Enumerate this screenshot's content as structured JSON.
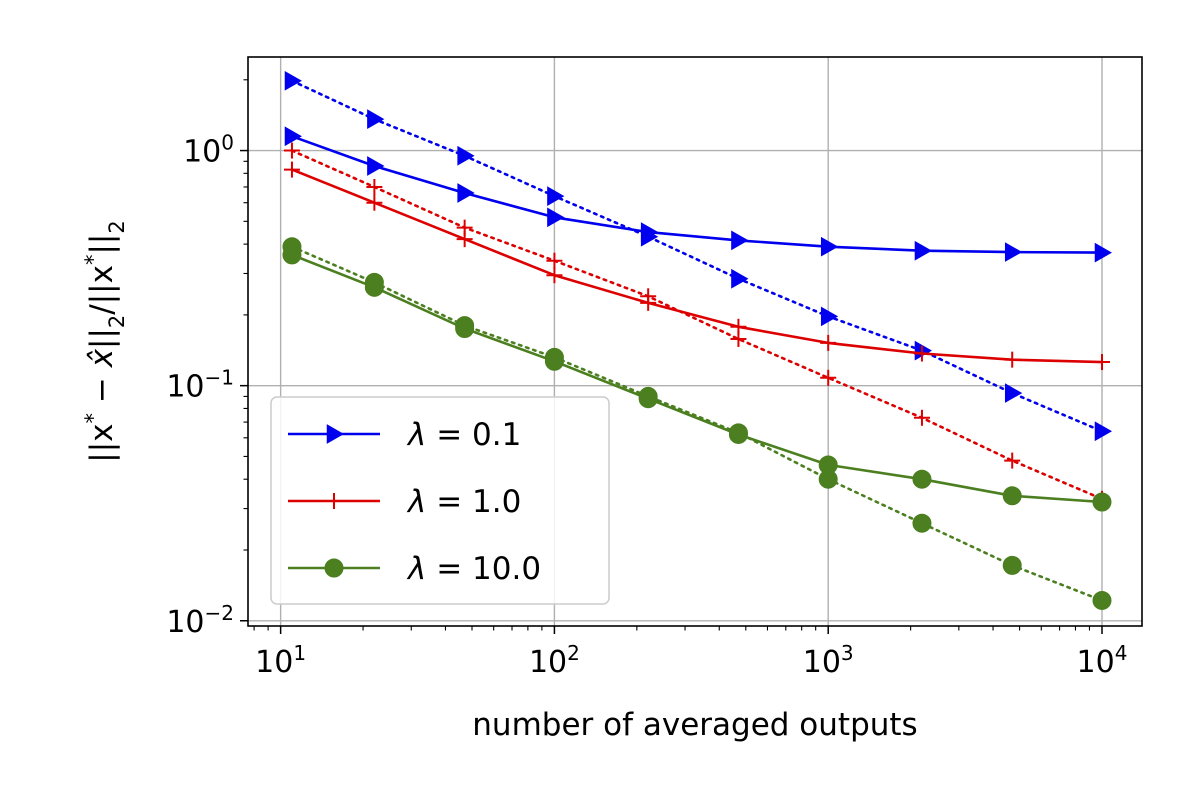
{
  "chart_data": {
    "type": "line",
    "title": "",
    "xlabel": "number of averaged outputs",
    "ylabel_parts": {
      "a": "||x",
      "sup1": "*",
      "b": " − ",
      "xhat": "x̂",
      "c": "||",
      "sub1": "2",
      "d": "/||x",
      "sup2": "*",
      "e": "||",
      "sub2": "2"
    },
    "xscale": "log",
    "yscale": "log",
    "xlim": [
      7.6,
      14000
    ],
    "ylim": [
      0.0095,
      2.5
    ],
    "grid": true,
    "legend_position": "lower-left",
    "xticks": [
      {
        "value": 10,
        "base": "10",
        "exp": "1"
      },
      {
        "value": 100,
        "base": "10",
        "exp": "2"
      },
      {
        "value": 1000,
        "base": "10",
        "exp": "3"
      },
      {
        "value": 10000,
        "base": "10",
        "exp": "4"
      }
    ],
    "yticks": [
      {
        "value": 0.01,
        "base": "10",
        "exp": "−2"
      },
      {
        "value": 0.1,
        "base": "10",
        "exp": "−1"
      },
      {
        "value": 1,
        "base": "10",
        "exp": "0"
      }
    ],
    "x": [
      11,
      22,
      47,
      100,
      220,
      470,
      1000,
      2200,
      4700,
      10000
    ],
    "series": [
      {
        "name": "λ = 0.1",
        "legend_prefix": "λ",
        "legend_value": " = 0.1",
        "color": "#0000ee",
        "marker": "triangle-right",
        "solid": [
          1.15,
          0.86,
          0.66,
          0.52,
          0.45,
          0.415,
          0.39,
          0.375,
          0.37,
          0.368
        ],
        "dotted": [
          1.98,
          1.36,
          0.95,
          0.64,
          0.43,
          0.285,
          0.197,
          0.141,
          0.093,
          0.064
        ]
      },
      {
        "name": "λ = 1.0",
        "legend_prefix": "λ",
        "legend_value": " = 1.0",
        "color": "#dd0000",
        "marker": "plus",
        "solid": [
          0.83,
          0.6,
          0.42,
          0.295,
          0.225,
          0.178,
          0.152,
          0.137,
          0.129,
          0.126
        ],
        "dotted": [
          1.0,
          0.7,
          0.47,
          0.34,
          0.24,
          0.158,
          0.108,
          0.073,
          0.048,
          0.033
        ]
      },
      {
        "name": "λ = 10.0",
        "legend_prefix": "λ",
        "legend_value": " = 10.0",
        "color": "#4b7f1f",
        "marker": "circle",
        "solid": [
          0.36,
          0.262,
          0.175,
          0.127,
          0.088,
          0.062,
          0.046,
          0.04,
          0.034,
          0.032
        ],
        "dotted": [
          0.39,
          0.275,
          0.18,
          0.132,
          0.09,
          0.063,
          0.04,
          0.026,
          0.0172,
          0.0122
        ]
      }
    ]
  }
}
